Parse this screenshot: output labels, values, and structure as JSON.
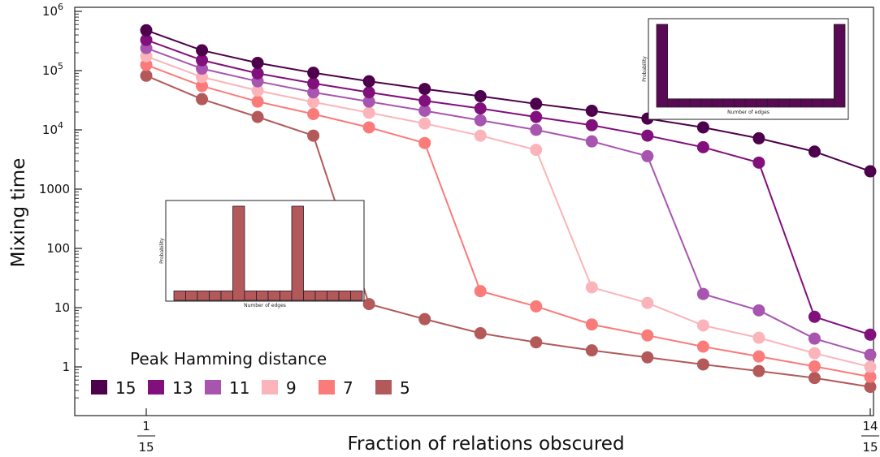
{
  "chart_data": {
    "type": "line",
    "ylabel": "Mixing time",
    "xlabel": "Fraction of relations obscured",
    "x": [
      1,
      2,
      3,
      4,
      5,
      6,
      7,
      8,
      9,
      10,
      11,
      12,
      13,
      14
    ],
    "x_unit": "fifteenths",
    "x_ticks": [
      {
        "value": 1,
        "numerator": "1",
        "denominator": "15"
      },
      {
        "value": 14,
        "numerator": "14",
        "denominator": "15"
      }
    ],
    "yscale": "log",
    "ylim": [
      0.3,
      1000000
    ],
    "y_ticks": [
      {
        "value": 1,
        "label": "1"
      },
      {
        "value": 10,
        "label": "10"
      },
      {
        "value": 100,
        "label": "100"
      },
      {
        "value": 1000,
        "label": "1000"
      },
      {
        "value": 10000,
        "label": "10",
        "exp": "4"
      },
      {
        "value": 100000,
        "label": "10",
        "exp": "5"
      },
      {
        "value": 1000000,
        "label": "10",
        "exp": "6"
      }
    ],
    "legend_title": "Peak Hamming distance",
    "legend_position": "bottom-left",
    "series": [
      {
        "name": "15",
        "color": "#4d004b",
        "values": [
          480000,
          220000,
          135000,
          92000,
          66000,
          49000,
          37000,
          27500,
          21000,
          15500,
          11000,
          7200,
          4300,
          2000
        ]
      },
      {
        "name": "13",
        "color": "#810f7c",
        "values": [
          330000,
          150000,
          90000,
          61000,
          43000,
          31000,
          23000,
          16500,
          12000,
          8000,
          5100,
          2800,
          7,
          3.5
        ]
      },
      {
        "name": "11",
        "color": "#a855b0",
        "values": [
          240000,
          108000,
          66000,
          43000,
          30000,
          21000,
          14500,
          10000,
          6400,
          3600,
          17,
          9,
          3,
          1.6
        ]
      },
      {
        "name": "9",
        "color": "#fbb4b9",
        "values": [
          175000,
          78000,
          46000,
          29500,
          19500,
          12800,
          8000,
          4600,
          22,
          12,
          5,
          3.1,
          1.7,
          1
        ]
      },
      {
        "name": "7",
        "color": "#fb7a7a",
        "values": [
          125000,
          55000,
          30000,
          18500,
          11000,
          6000,
          19,
          10.5,
          5.2,
          3.4,
          2.2,
          1.5,
          1.02,
          0.68
        ]
      },
      {
        "name": "5",
        "color": "#b3595a",
        "values": [
          82000,
          33000,
          16500,
          8000,
          11.5,
          6.4,
          3.7,
          2.6,
          1.9,
          1.45,
          1.1,
          0.85,
          0.65,
          0.46
        ]
      }
    ],
    "grid": false,
    "insets": [
      {
        "id": "inset-top-right",
        "ylabel": "Probability",
        "xlabel": "Number of edges",
        "bar_color": "#5a0a55",
        "values": [
          1,
          0.1,
          0.1,
          0.1,
          0.1,
          0.1,
          0.1,
          0.1,
          0.1,
          0.1,
          0.1,
          0.1,
          0.1,
          0.1,
          0.1,
          0.1,
          1
        ]
      },
      {
        "id": "inset-middle-left",
        "ylabel": "Probability",
        "xlabel": "Number of edges",
        "bar_color": "#b3595a",
        "values": [
          0.1,
          0.1,
          0.1,
          0.1,
          0.1,
          1,
          0.1,
          0.1,
          0.1,
          0.1,
          1,
          0.1,
          0.1,
          0.1,
          0.1,
          0.1
        ]
      }
    ]
  }
}
